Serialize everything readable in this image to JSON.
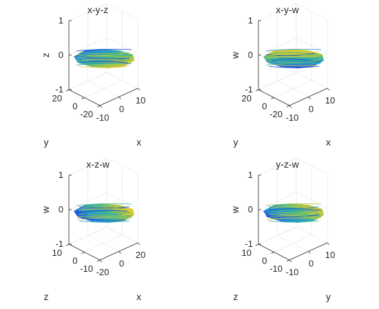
{
  "chart_data": [
    {
      "type": "scatter",
      "title": "x-y-z",
      "xlabel": "x",
      "ylabel": "y",
      "zlabel": "z",
      "xticks": [
        "-10",
        "0",
        "10"
      ],
      "yticks": [
        "-20",
        "0",
        "20"
      ],
      "zticks": [
        "-1",
        "0",
        "1"
      ],
      "colormap": [
        "#0b3fd9",
        "#1f8fd0",
        "#35b58f",
        "#a9c53a",
        "#f6c929"
      ],
      "grid": true
    },
    {
      "type": "scatter",
      "title": "x-y-w",
      "xlabel": "x",
      "ylabel": "y",
      "zlabel": "w",
      "xticks": [
        "-10",
        "0",
        "10"
      ],
      "yticks": [
        "-20",
        "0",
        "20"
      ],
      "zticks": [
        "-1",
        "0",
        "1"
      ],
      "colormap": [
        "#0b3fd9",
        "#1f8fd0",
        "#35b58f",
        "#a9c53a",
        "#f6c929"
      ],
      "grid": true
    },
    {
      "type": "scatter",
      "title": "x-z-w",
      "xlabel": "x",
      "ylabel": "z",
      "zlabel": "w",
      "xticks": [
        "-20",
        "0",
        "20"
      ],
      "yticks": [
        "-10",
        "0",
        "10"
      ],
      "zticks": [
        "-1",
        "0",
        "1"
      ],
      "colormap": [
        "#0b3fd9",
        "#1f8fd0",
        "#35b58f",
        "#a9c53a",
        "#f6c929"
      ],
      "grid": true
    },
    {
      "type": "scatter",
      "title": "y-z-w",
      "xlabel": "y",
      "ylabel": "z",
      "zlabel": "w",
      "xticks": [
        "-10",
        "0",
        "10"
      ],
      "yticks": [
        "-10",
        "0",
        "10"
      ],
      "zticks": [
        "-1",
        "0",
        "1"
      ],
      "colormap": [
        "#0b3fd9",
        "#1f8fd0",
        "#35b58f",
        "#a9c53a",
        "#f6c929"
      ],
      "grid": true
    }
  ]
}
